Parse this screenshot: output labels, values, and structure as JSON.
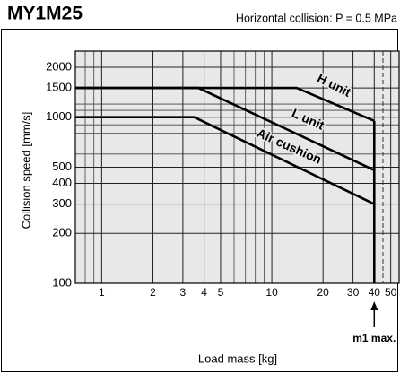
{
  "chart_data": {
    "type": "line",
    "title": "MY1M25",
    "subtitle": "Horizontal collision: P = 0.5 MPa",
    "x_label": "Load mass [kg]",
    "y_label": "Collision speed [mm/s]",
    "xscale": "log",
    "yscale": "log",
    "xlim": [
      0.7,
      56
    ],
    "ylim": [
      100,
      2500
    ],
    "xticks": [
      1,
      2,
      3,
      4,
      5,
      10,
      20,
      30,
      40,
      50
    ],
    "yticks": [
      100,
      200,
      300,
      400,
      500,
      1000,
      1500,
      2000
    ],
    "x_minor_grid": [
      0.8,
      0.9,
      6,
      7,
      8,
      9
    ],
    "y_minor_grid": [
      600,
      700,
      800,
      900,
      1100,
      1200
    ],
    "grid": true,
    "series": [
      {
        "name": "H unit",
        "color": "#000000",
        "x": [
          0.7,
          14,
          40
        ],
        "values": [
          1500,
          1500,
          950
        ]
      },
      {
        "name": "L unit",
        "color": "#000000",
        "x": [
          0.7,
          3.7,
          40
        ],
        "values": [
          1500,
          1500,
          480
        ]
      },
      {
        "name": "Air cushion",
        "color": "#000000",
        "x": [
          0.7,
          3.5,
          40
        ],
        "values": [
          1000,
          1000,
          300
        ]
      }
    ],
    "limit": {
      "x": 40,
      "label": "m1 max.",
      "dashed_x": 45
    }
  }
}
